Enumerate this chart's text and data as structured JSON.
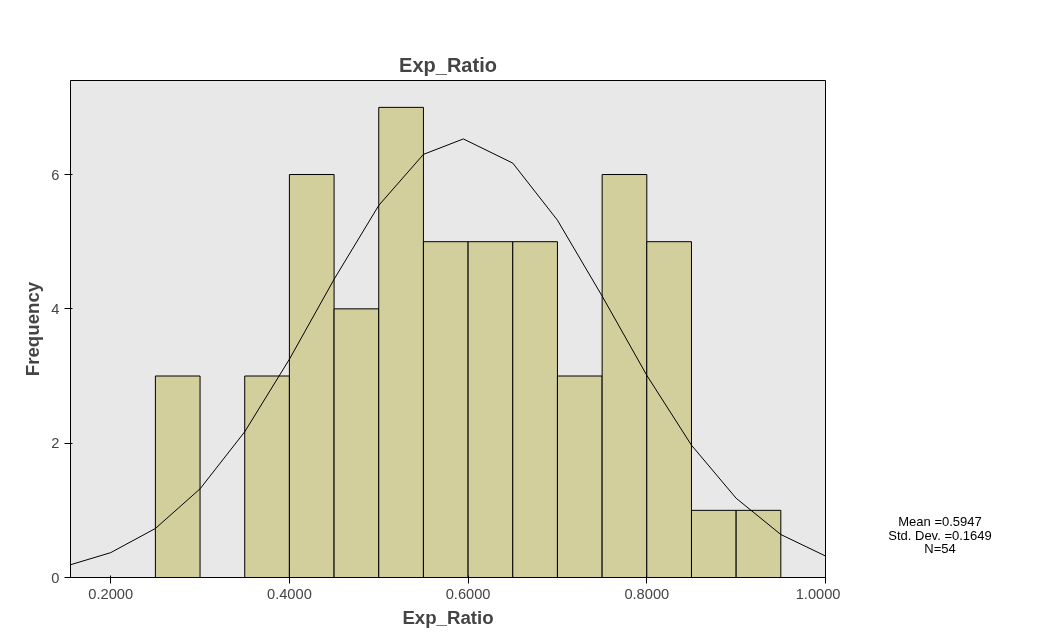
{
  "chart_data": {
    "type": "histogram",
    "title": "Exp_Ratio",
    "xlabel": "Exp_Ratio",
    "ylabel": "Frequency",
    "bins": [
      0.25,
      0.3,
      0.35,
      0.4,
      0.45,
      0.5,
      0.55,
      0.6,
      0.65,
      0.7,
      0.75,
      0.8,
      0.85,
      0.9,
      0.95
    ],
    "values": [
      3,
      0,
      3,
      6,
      4,
      7,
      5,
      5,
      5,
      3,
      6,
      5,
      1,
      1
    ],
    "color": "#d3cf9c",
    "series": [
      {
        "type": "line",
        "color": "#000000",
        "x": [
          0.155,
          0.2,
          0.25,
          0.3,
          0.35,
          0.4,
          0.45,
          0.5,
          0.55,
          0.5947,
          0.65,
          0.7,
          0.75,
          0.8,
          0.85,
          0.9,
          0.95,
          1.0
        ],
        "values": [
          0.19,
          0.37,
          0.73,
          1.32,
          2.17,
          3.25,
          4.44,
          5.54,
          6.3,
          6.53,
          6.17,
          5.32,
          4.19,
          3.01,
          1.97,
          1.18,
          0.64,
          0.32
        ]
      }
    ],
    "xlim": [
      0.155,
      1.0
    ],
    "ylim": [
      0,
      7.4
    ],
    "xticks": [
      {
        "value": 0.2,
        "label": "0.2000"
      },
      {
        "value": 0.4,
        "label": "0.4000"
      },
      {
        "value": 0.6,
        "label": "0.6000"
      },
      {
        "value": 0.8,
        "label": "0.8000"
      },
      {
        "value": 1.0,
        "label": "1.0000"
      }
    ],
    "yticks": [
      0,
      2,
      4,
      6
    ],
    "grid": false,
    "annotations": [
      "Mean =0.5947",
      "Std. Dev. =0.1649",
      "N=54"
    ]
  }
}
